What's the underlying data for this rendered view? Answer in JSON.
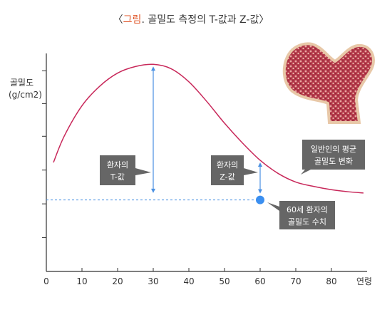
{
  "chart_data": {
    "type": "line",
    "title_prefix": "〈",
    "title_accent": "그림",
    "title_rest": ". 골밀도 측정의 T-값과 Z-값〉",
    "ylabel_line1": "골밀도",
    "ylabel_line2": "(g/cm2)",
    "xlabel": "연령",
    "x_ticks": [
      "0",
      "10",
      "20",
      "30",
      "40",
      "50",
      "60",
      "70",
      "80"
    ],
    "xlim": [
      0,
      90
    ],
    "ylim": [
      0,
      100
    ],
    "series": [
      {
        "x": [
          2,
          5,
          10,
          15,
          20,
          25,
          30,
          35,
          40,
          45,
          50,
          55,
          60,
          65,
          70,
          75,
          80,
          85,
          89
        ],
        "values": [
          50,
          62,
          76,
          85,
          91,
          94,
          95,
          93,
          87,
          78,
          68,
          59,
          51,
          45,
          41,
          39,
          37.5,
          36.5,
          36
        ]
      }
    ],
    "patient": {
      "age": 60,
      "value": 32.8
    },
    "callouts": {
      "t_value": {
        "line1": "환자의",
        "line2": "T-값"
      },
      "z_value": {
        "line1": "환자의",
        "line2": "Z-값"
      },
      "average": {
        "line1": "일반인의 평균",
        "line2": "골밀도 변화"
      },
      "patient": {
        "line1": "60세 환자의",
        "line2": "골밀도 수치"
      }
    },
    "colors": {
      "curve": "#c8285a",
      "arrow": "#4a90e2",
      "dashed": "#4a90e2",
      "point": "#3b8ff0",
      "callout_bg": "#666666",
      "title_accent": "#e0572a",
      "bone_fill": "#b4394a",
      "bone_edge": "#e8c8a8"
    },
    "illustration": "femur-bone-icon"
  }
}
